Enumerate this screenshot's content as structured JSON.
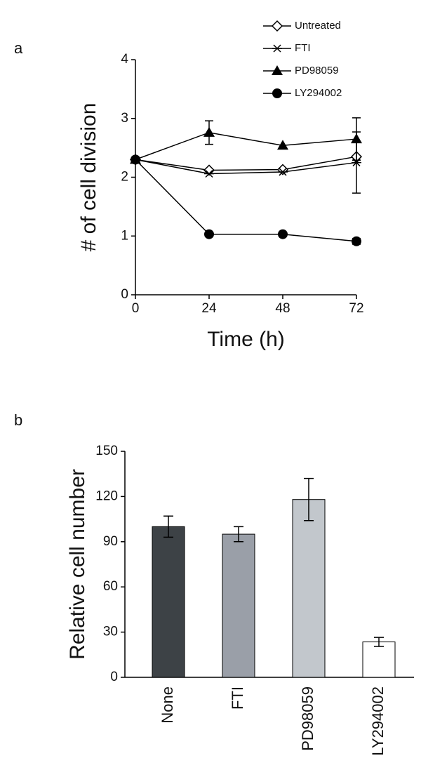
{
  "chart_data": [
    {
      "type": "line",
      "panel_label": "a",
      "xlabel": "Time (h)",
      "ylabel": "# of cell division",
      "x": [
        0,
        24,
        48,
        72
      ],
      "xlim": [
        0,
        72
      ],
      "xticks": [
        0,
        24,
        48,
        72
      ],
      "ylim": [
        0,
        4
      ],
      "yticks": [
        0,
        1,
        2,
        3,
        4
      ],
      "legend": "top-right",
      "series": [
        {
          "name": "Untreated",
          "color": "#000000",
          "marker": "diamond-open",
          "values": [
            2.3,
            2.12,
            2.13,
            2.35
          ],
          "errors": [
            null,
            null,
            null,
            null
          ]
        },
        {
          "name": "FTI",
          "color": "#000000",
          "marker": "star",
          "values": [
            2.3,
            2.06,
            2.09,
            2.25
          ],
          "errors": [
            null,
            null,
            null,
            0.52
          ]
        },
        {
          "name": "PD98059",
          "color": "#000000",
          "marker": "triangle",
          "values": [
            2.3,
            2.76,
            2.54,
            2.65
          ],
          "errors": [
            null,
            0.2,
            null,
            0.36
          ]
        },
        {
          "name": "LY294002",
          "color": "#000000",
          "marker": "circle",
          "values": [
            2.3,
            1.03,
            1.03,
            0.91
          ],
          "errors": [
            null,
            null,
            null,
            0.05
          ]
        }
      ]
    },
    {
      "type": "bar",
      "panel_label": "b",
      "ylabel": "Relative cell number",
      "categories": [
        "None",
        "FTI",
        "PD98059",
        "LY294002"
      ],
      "values": [
        100,
        95,
        118,
        23.5
      ],
      "errors": [
        7,
        5,
        14,
        3
      ],
      "colors": [
        "#3d4246",
        "#9a9fa8",
        "#c2c7cc",
        "#ffffff"
      ],
      "ylim": [
        0,
        150
      ],
      "yticks": [
        0,
        30,
        60,
        90,
        120,
        150
      ]
    }
  ]
}
